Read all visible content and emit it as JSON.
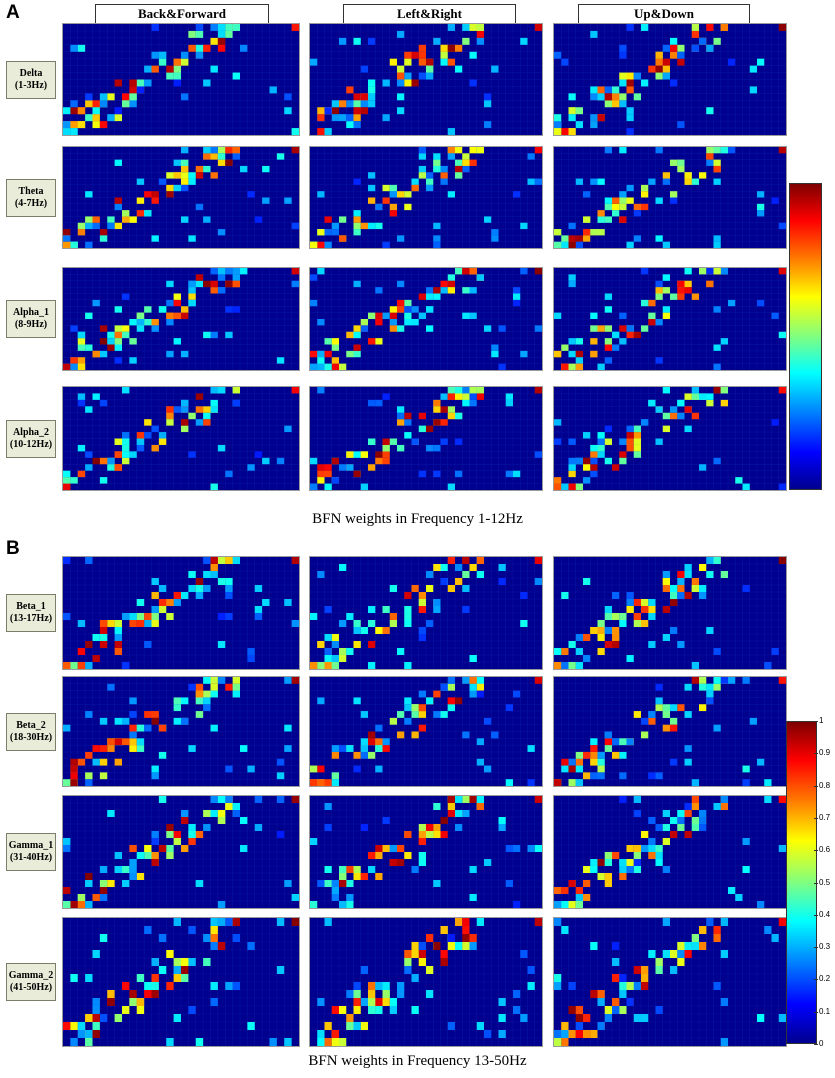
{
  "panels": {
    "a": {
      "letter": "A",
      "caption": "BFN weights in Frequency 1-12Hz",
      "columns": [
        "Back&Forward",
        "Left&Right",
        "Up&Down"
      ],
      "rows": [
        {
          "name": "Delta",
          "range": "(1-3Hz)"
        },
        {
          "name": "Theta",
          "range": "(4-7Hz)"
        },
        {
          "name": "Alpha_1",
          "range": "(8-9Hz)"
        },
        {
          "name": "Alpha_2",
          "range": "(10-12Hz)"
        }
      ]
    },
    "b": {
      "letter": "B",
      "caption": "BFN weights in Frequency 13-50Hz",
      "rows": [
        {
          "name": "Beta_1",
          "range": "(13-17Hz)"
        },
        {
          "name": "Beta_2",
          "range": "(18-30Hz)"
        },
        {
          "name": "Gamma_1",
          "range": "(31-40Hz)"
        },
        {
          "name": "Gamma_2",
          "range": "(41-50Hz)"
        }
      ]
    }
  },
  "colorbar_b_ticks": [
    "1",
    "0.9",
    "0.8",
    "0.7",
    "0.6",
    "0.5",
    "0.4",
    "0.3",
    "0.2",
    "0.1",
    "0"
  ],
  "chart_data": {
    "type": "heatmap",
    "colormap": "jet",
    "value_range": [
      0,
      1
    ],
    "grid_rows": 16,
    "grid_cols": 32
  }
}
